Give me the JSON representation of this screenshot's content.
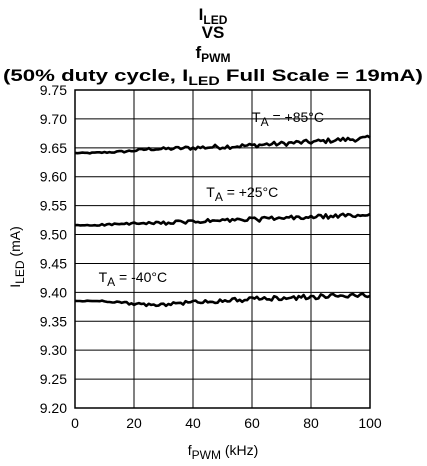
{
  "chart_data": {
    "type": "line",
    "title": {
      "line1": {
        "main": "I",
        "sub": "LED"
      },
      "line2": "VS",
      "line3": {
        "main": "f",
        "sub": "PWM"
      },
      "line4": {
        "pre": "(50% duty cycle, I",
        "sub": "LED",
        "post": " Full Scale = 19mA)"
      }
    },
    "xlabel": {
      "main": "f",
      "sub": "PWM",
      "post": " (kHz)"
    },
    "ylabel": {
      "main": "I",
      "sub": "LED",
      "post": " (mA)"
    },
    "xlim": [
      0,
      100
    ],
    "ylim": [
      9.2,
      9.75
    ],
    "xticks": [
      0,
      20,
      40,
      60,
      80,
      100
    ],
    "yticks": [
      9.2,
      9.25,
      9.3,
      9.35,
      9.4,
      9.45,
      9.5,
      9.55,
      9.6,
      9.65,
      9.7,
      9.75
    ],
    "grid": true,
    "series": [
      {
        "name": "T_A = +85°C",
        "label": {
          "pre": "T",
          "sub": "A",
          "post": " = +85°C"
        },
        "label_at": [
          60,
          9.695
        ],
        "x": [
          0,
          5,
          10,
          15,
          20,
          25,
          30,
          35,
          40,
          45,
          50,
          55,
          60,
          65,
          70,
          75,
          80,
          85,
          90,
          95,
          100
        ],
        "y": [
          9.641,
          9.641,
          9.642,
          9.643,
          9.645,
          9.648,
          9.648,
          9.649,
          9.65,
          9.651,
          9.652,
          9.653,
          9.654,
          9.656,
          9.657,
          9.659,
          9.66,
          9.662,
          9.664,
          9.665,
          9.667
        ],
        "noise": 0.008
      },
      {
        "name": "T_A = +25°C",
        "label": {
          "pre": "T",
          "sub": "A",
          "post": " = +25°C"
        },
        "label_at": [
          44.5,
          9.565
        ],
        "x": [
          0,
          5,
          10,
          15,
          20,
          25,
          30,
          35,
          40,
          45,
          50,
          55,
          60,
          65,
          70,
          75,
          80,
          85,
          90,
          95,
          100
        ],
        "y": [
          9.516,
          9.516,
          9.517,
          9.518,
          9.519,
          9.519,
          9.52,
          9.521,
          9.522,
          9.523,
          9.524,
          9.525,
          9.526,
          9.527,
          9.528,
          9.529,
          9.53,
          9.531,
          9.532,
          9.533,
          9.534
        ],
        "noise": 0.008
      },
      {
        "name": "T_A = -40°C",
        "label": {
          "pre": "T",
          "sub": "A",
          "post": " = -40°C"
        },
        "label_at": [
          8,
          9.418
        ],
        "x": [
          0,
          5,
          10,
          15,
          20,
          25,
          30,
          35,
          40,
          45,
          50,
          55,
          60,
          65,
          70,
          75,
          80,
          85,
          90,
          95,
          100
        ],
        "y": [
          9.385,
          9.385,
          9.385,
          9.383,
          9.38,
          9.378,
          9.379,
          9.381,
          9.383,
          9.384,
          9.386,
          9.387,
          9.388,
          9.389,
          9.39,
          9.391,
          9.392,
          9.393,
          9.394,
          9.395,
          9.395
        ],
        "noise": 0.008
      }
    ]
  }
}
